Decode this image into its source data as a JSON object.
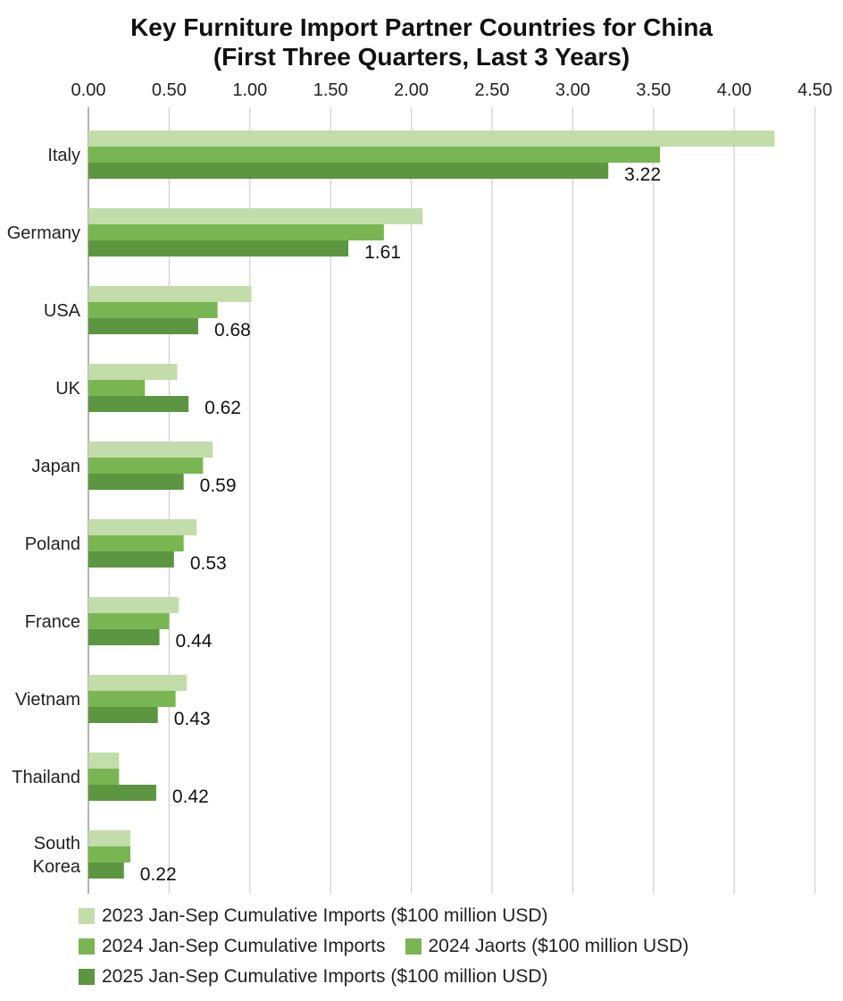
{
  "chart_data": {
    "type": "bar",
    "orientation": "horizontal",
    "title": [
      "Key Furniture Import Partner Countries for China",
      "(First Three Quarters, Last 3 Years)"
    ],
    "categories": [
      "Italy",
      "Germany",
      "USA",
      "UK",
      "Japan",
      "Poland",
      "France",
      "Vietnam",
      "Thailand",
      "South Korea"
    ],
    "category_label_lines": [
      [
        "Italy"
      ],
      [
        "Germany"
      ],
      [
        "USA"
      ],
      [
        "UK"
      ],
      [
        "Japan"
      ],
      [
        "Poland"
      ],
      [
        "France"
      ],
      [
        "Vietnam"
      ],
      [
        "Thailand"
      ],
      [
        "South",
        "Korea"
      ]
    ],
    "x_ticks": [
      "0.00",
      "0.50",
      "1.00",
      "1.50",
      "2.00",
      "2.50",
      "3.00",
      "3.50",
      "4.00",
      "4.50"
    ],
    "xlim": [
      0,
      4.5
    ],
    "x_axis_position": "top",
    "grid": true,
    "legend_placement": "bottom",
    "series": [
      {
        "name": "2023 Jan-Sep Cumulative Imports ($100 million USD)",
        "color": "#c2dcaa",
        "values": [
          4.25,
          2.07,
          1.01,
          0.55,
          0.77,
          0.67,
          0.56,
          0.61,
          0.19,
          0.26
        ]
      },
      {
        "name": "2024 Jan-Sep Cumulative Imports",
        "color": "#79b652",
        "values": [
          3.54,
          1.83,
          0.8,
          0.35,
          0.71,
          0.59,
          0.5,
          0.54,
          0.19,
          0.26
        ]
      },
      {
        "name": "2025 Jan-Sep Cumulative Imports ($100 million USD)",
        "color": "#5d9640",
        "values": [
          3.22,
          1.61,
          0.68,
          0.62,
          0.59,
          0.53,
          0.44,
          0.43,
          0.42,
          0.22
        ],
        "data_labels": [
          "3.22",
          "1.61",
          "0.68",
          "0.62",
          "0.59",
          "0.53",
          "0.44",
          "0.43",
          "0.42",
          "0.22"
        ]
      }
    ],
    "legend_extra": {
      "name": "2024 Jaorts ($100 million USD)",
      "color": "#79b652"
    }
  }
}
